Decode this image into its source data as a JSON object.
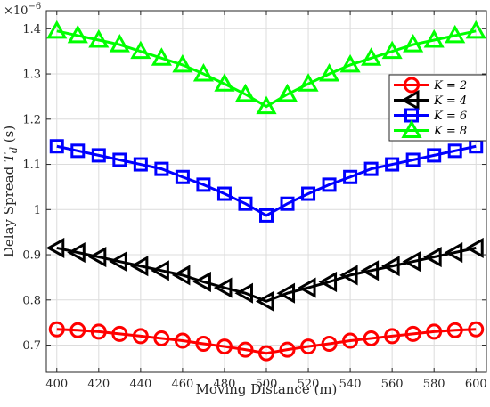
{
  "chart_data": {
    "type": "line",
    "title": "",
    "xlabel": "Moving Distance (m)",
    "ylabel": "Delay Spread T_d (s)",
    "ylabel_prefix": "Delay Spread ",
    "ylabel_symbol": "T",
    "ylabel_subscript": "d",
    "ylabel_suffix": " (s)",
    "y_exponent_label": "×10",
    "y_exponent_power": "−6",
    "xlim": [
      395,
      605
    ],
    "ylim": [
      0.64,
      1.44
    ],
    "x_ticks": [
      "400",
      "420",
      "440",
      "460",
      "480",
      "500",
      "520",
      "540",
      "560",
      "580",
      "600"
    ],
    "y_ticks": [
      "0.7",
      "0.8",
      "0.9",
      "1",
      "1.1",
      "1.2",
      "1.3",
      "1.4"
    ],
    "grid": true,
    "legend_position": "right",
    "x": [
      400,
      410,
      420,
      430,
      440,
      450,
      460,
      470,
      480,
      490,
      500,
      510,
      520,
      530,
      540,
      550,
      560,
      570,
      580,
      590,
      600
    ],
    "series": [
      {
        "name": "K = 2",
        "legend_label": "K = 2",
        "marker": "circle",
        "color": "#ff0000",
        "values": [
          0.735,
          0.733,
          0.73,
          0.725,
          0.72,
          0.715,
          0.71,
          0.703,
          0.697,
          0.69,
          0.682,
          0.69,
          0.697,
          0.703,
          0.71,
          0.715,
          0.72,
          0.725,
          0.73,
          0.733,
          0.735
        ]
      },
      {
        "name": "K = 4",
        "legend_label": "K = 4",
        "marker": "triangle-left",
        "color": "#000000",
        "values": [
          0.915,
          0.905,
          0.895,
          0.885,
          0.875,
          0.865,
          0.855,
          0.84,
          0.827,
          0.815,
          0.797,
          0.815,
          0.827,
          0.84,
          0.855,
          0.865,
          0.875,
          0.885,
          0.895,
          0.905,
          0.915
        ]
      },
      {
        "name": "K = 6",
        "legend_label": "K = 6",
        "marker": "square",
        "color": "#0000ff",
        "values": [
          1.14,
          1.13,
          1.12,
          1.11,
          1.1,
          1.09,
          1.072,
          1.055,
          1.035,
          1.013,
          0.987,
          1.013,
          1.035,
          1.055,
          1.072,
          1.09,
          1.1,
          1.11,
          1.12,
          1.13,
          1.14
        ]
      },
      {
        "name": "K = 8",
        "legend_label": "K = 8",
        "marker": "triangle-up",
        "color": "#00ff00",
        "values": [
          1.395,
          1.385,
          1.375,
          1.365,
          1.35,
          1.335,
          1.32,
          1.3,
          1.278,
          1.255,
          1.228,
          1.255,
          1.278,
          1.3,
          1.32,
          1.335,
          1.35,
          1.365,
          1.375,
          1.385,
          1.395
        ]
      }
    ]
  }
}
